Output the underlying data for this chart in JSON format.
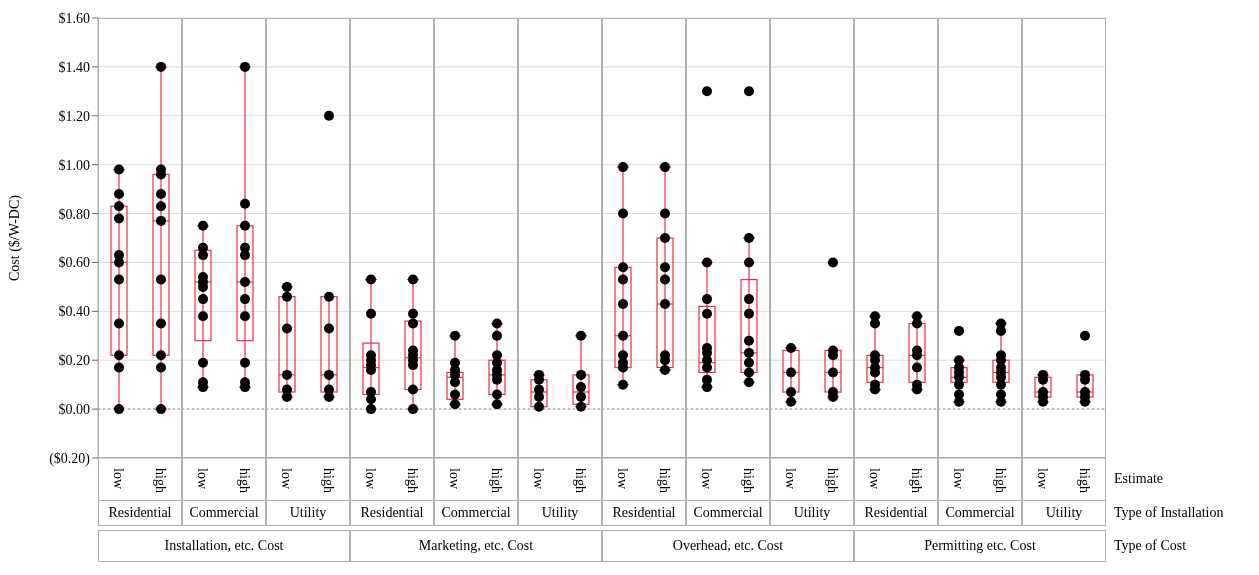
{
  "chart_data": [
    {
      "type": "box",
      "ylabel": "Cost ($/W-DC)",
      "xlabel": "Residential",
      "categories": [
        "low",
        "high"
      ],
      "color": "#e5304a",
      "grid": "y",
      "marker": "circle",
      "ylim": [
        -0.2,
        1.6
      ],
      "yticks": [
        {
          "value": -0.2,
          "label": "($0.20)"
        },
        {
          "value": 0,
          "label": "$0.00"
        },
        {
          "value": 0.2,
          "label": "$0.20"
        },
        {
          "value": 0.4,
          "label": "$0.40"
        },
        {
          "value": 0.6,
          "label": "$0.60"
        },
        {
          "value": 0.8,
          "label": "$0.80"
        },
        {
          "value": 1,
          "label": "$1.00"
        },
        {
          "value": 1.2,
          "label": "$1.20"
        },
        {
          "value": 1.4,
          "label": "$1.40"
        },
        {
          "value": 1.6,
          "label": "$1.60"
        }
      ],
      "ref_lines": [
        {
          "axis": "y",
          "value": 0,
          "color": "#c0c0c0",
          "line_style": "dotted"
        }
      ],
      "boxes": [
        {
          "low": 0,
          "q1": 0.22,
          "median": 0.6,
          "q3": 0.83,
          "high": 0.98
        },
        {
          "low": 0,
          "q1": 0.22,
          "median": 0.77,
          "q3": 0.96,
          "high": 1.4
        }
      ],
      "series": [
        {
          "type": "scatter",
          "color": "#000000",
          "x": [
            "low",
            "low",
            "low",
            "low",
            "low",
            "low",
            "low",
            "low",
            "low",
            "low",
            "low",
            "high",
            "high",
            "high",
            "high",
            "high",
            "high",
            "high",
            "high",
            "high",
            "high",
            "high"
          ],
          "values": [
            0.98,
            0.88,
            0.83,
            0.78,
            0.63,
            0.6,
            0.53,
            0.35,
            0.22,
            0.17,
            0,
            1.4,
            0.98,
            0.96,
            0.88,
            0.83,
            0.77,
            0.53,
            0.35,
            0.22,
            0.17,
            0
          ]
        }
      ]
    },
    {
      "type": "box",
      "xlabel": "Commercial",
      "categories": [
        "low",
        "high"
      ],
      "color": "#e5304a",
      "grid": "y",
      "marker": "circle",
      "tick_labels": "x",
      "annotations": [
        "Installation, etc. Cost"
      ],
      "ylim": [
        -0.2,
        1.6
      ],
      "yticks": [
        -0.2,
        0,
        0.2,
        0.4,
        0.6,
        0.8,
        1,
        1.2,
        1.4,
        1.6
      ],
      "ref_lines": [
        {
          "axis": "y",
          "value": 0,
          "color": "#c0c0c0",
          "line_style": "dotted"
        }
      ],
      "boxes": [
        {
          "low": 0.09,
          "q1": 0.28,
          "median": 0.52,
          "q3": 0.65,
          "high": 0.75
        },
        {
          "low": 0.09,
          "q1": 0.28,
          "median": 0.52,
          "q3": 0.75,
          "high": 1.4
        }
      ],
      "series": [
        {
          "type": "scatter",
          "color": "#000000",
          "x": [
            "low",
            "low",
            "low",
            "low",
            "low",
            "low",
            "low",
            "low",
            "low",
            "low",
            "low",
            "high",
            "high",
            "high",
            "high",
            "high",
            "high",
            "high",
            "high",
            "high",
            "high",
            "high"
          ],
          "values": [
            0.75,
            0.66,
            0.63,
            0.54,
            0.52,
            0.5,
            0.45,
            0.38,
            0.19,
            0.11,
            0.09,
            1.4,
            0.84,
            0.75,
            0.66,
            0.63,
            0.52,
            0.45,
            0.38,
            0.19,
            0.11,
            0.09
          ]
        }
      ]
    },
    {
      "type": "box",
      "xlabel": "Utility",
      "categories": [
        "low",
        "high"
      ],
      "color": "#e5304a",
      "grid": "y",
      "marker": "circle",
      "tick_labels": "x",
      "ylim": [
        -0.2,
        1.6
      ],
      "yticks": [
        -0.2,
        0,
        0.2,
        0.4,
        0.6,
        0.8,
        1,
        1.2,
        1.4,
        1.6
      ],
      "ref_lines": [
        {
          "axis": "y",
          "value": 0,
          "color": "#c0c0c0",
          "line_style": "dotted"
        }
      ],
      "boxes": [
        {
          "low": 0.05,
          "q1": 0.07,
          "median": 0.14,
          "q3": 0.46,
          "high": 0.5
        },
        {
          "low": 0.05,
          "q1": 0.07,
          "median": 0.14,
          "q3": 0.46,
          "high": 0.46
        }
      ],
      "series": [
        {
          "type": "scatter",
          "color": "#000000",
          "x": [
            "low",
            "low",
            "low",
            "low",
            "low",
            "low",
            "high",
            "high",
            "high",
            "high",
            "high",
            "high"
          ],
          "values": [
            0.5,
            0.46,
            0.33,
            0.14,
            0.08,
            0.05,
            1.2,
            0.46,
            0.33,
            0.14,
            0.08,
            0.05
          ]
        }
      ]
    },
    {
      "type": "box",
      "xlabel": "Residential",
      "categories": [
        "low",
        "high"
      ],
      "color": "#e5304a",
      "grid": "y",
      "marker": "circle",
      "tick_labels": "x",
      "ylim": [
        -0.2,
        1.6
      ],
      "yticks": [
        -0.2,
        0,
        0.2,
        0.4,
        0.6,
        0.8,
        1,
        1.2,
        1.4,
        1.6
      ],
      "ref_lines": [
        {
          "axis": "y",
          "value": 0,
          "color": "#c0c0c0",
          "line_style": "dotted"
        }
      ],
      "boxes": [
        {
          "low": 0,
          "q1": 0.06,
          "median": 0.17,
          "q3": 0.27,
          "high": 0.53
        },
        {
          "low": 0,
          "q1": 0.08,
          "median": 0.21,
          "q3": 0.36,
          "high": 0.53
        }
      ],
      "series": [
        {
          "type": "scatter",
          "color": "#000000",
          "x": [
            "low",
            "low",
            "low",
            "low",
            "low",
            "low",
            "low",
            "low",
            "low",
            "high",
            "high",
            "high",
            "high",
            "high",
            "high",
            "high",
            "high",
            "high"
          ],
          "values": [
            0.53,
            0.39,
            0.22,
            0.2,
            0.18,
            0.16,
            0.07,
            0.04,
            0,
            0.53,
            0.39,
            0.35,
            0.24,
            0.22,
            0.2,
            0.18,
            0.08,
            0
          ]
        }
      ]
    },
    {
      "type": "box",
      "xlabel": "Commercial",
      "categories": [
        "low",
        "high"
      ],
      "color": "#e5304a",
      "grid": "y",
      "marker": "circle",
      "tick_labels": "x",
      "annotations": [
        "Marketing, etc. Cost"
      ],
      "ylim": [
        -0.2,
        1.6
      ],
      "yticks": [
        -0.2,
        0,
        0.2,
        0.4,
        0.6,
        0.8,
        1,
        1.2,
        1.4,
        1.6
      ],
      "ref_lines": [
        {
          "axis": "y",
          "value": 0,
          "color": "#c0c0c0",
          "line_style": "dotted"
        }
      ],
      "boxes": [
        {
          "low": 0.02,
          "q1": 0.04,
          "median": 0.13,
          "q3": 0.15,
          "high": 0.3
        },
        {
          "low": 0.02,
          "q1": 0.06,
          "median": 0.14,
          "q3": 0.2,
          "high": 0.35
        }
      ],
      "series": [
        {
          "type": "scatter",
          "color": "#000000",
          "x": [
            "low",
            "low",
            "low",
            "low",
            "low",
            "low",
            "low",
            "high",
            "high",
            "high",
            "high",
            "high",
            "high",
            "high",
            "high",
            "high"
          ],
          "values": [
            0.3,
            0.19,
            0.16,
            0.14,
            0.11,
            0.06,
            0.02,
            0.35,
            0.3,
            0.22,
            0.19,
            0.16,
            0.14,
            0.12,
            0.06,
            0.02
          ]
        }
      ]
    },
    {
      "type": "box",
      "xlabel": "Utility",
      "categories": [
        "low",
        "high"
      ],
      "color": "#e5304a",
      "grid": "y",
      "marker": "circle",
      "tick_labels": "x",
      "ylim": [
        -0.2,
        1.6
      ],
      "yticks": [
        -0.2,
        0,
        0.2,
        0.4,
        0.6,
        0.8,
        1,
        1.2,
        1.4,
        1.6
      ],
      "ref_lines": [
        {
          "axis": "y",
          "value": 0,
          "color": "#c0c0c0",
          "line_style": "dotted"
        }
      ],
      "boxes": [
        {
          "low": 0.01,
          "q1": 0.01,
          "median": 0.07,
          "q3": 0.12,
          "high": 0.14
        },
        {
          "low": 0.01,
          "q1": 0.02,
          "median": 0.07,
          "q3": 0.14,
          "high": 0.3
        }
      ],
      "series": [
        {
          "type": "scatter",
          "color": "#000000",
          "x": [
            "low",
            "low",
            "low",
            "low",
            "low",
            "high",
            "high",
            "high",
            "high",
            "high"
          ],
          "values": [
            0.14,
            0.12,
            0.08,
            0.05,
            0.01,
            0.3,
            0.14,
            0.09,
            0.05,
            0.01
          ]
        }
      ]
    },
    {
      "type": "box",
      "xlabel": "Residential",
      "categories": [
        "low",
        "high"
      ],
      "color": "#e5304a",
      "grid": "y",
      "marker": "circle",
      "tick_labels": "x",
      "ylim": [
        -0.2,
        1.6
      ],
      "yticks": [
        -0.2,
        0,
        0.2,
        0.4,
        0.6,
        0.8,
        1,
        1.2,
        1.4,
        1.6
      ],
      "ref_lines": [
        {
          "axis": "y",
          "value": 0,
          "color": "#c0c0c0",
          "line_style": "dotted"
        }
      ],
      "boxes": [
        {
          "low": 0.1,
          "q1": 0.17,
          "median": 0.3,
          "q3": 0.58,
          "high": 0.99
        },
        {
          "low": 0.16,
          "q1": 0.17,
          "median": 0.43,
          "q3": 0.7,
          "high": 0.99
        }
      ],
      "series": [
        {
          "type": "scatter",
          "color": "#000000",
          "x": [
            "low",
            "low",
            "low",
            "low",
            "low",
            "low",
            "low",
            "low",
            "low",
            "low",
            "high",
            "high",
            "high",
            "high",
            "high",
            "high",
            "high",
            "high",
            "high"
          ],
          "values": [
            0.99,
            0.8,
            0.58,
            0.53,
            0.43,
            0.3,
            0.22,
            0.19,
            0.17,
            0.1,
            0.99,
            0.8,
            0.7,
            0.58,
            0.53,
            0.43,
            0.22,
            0.2,
            0.16
          ]
        }
      ]
    },
    {
      "type": "box",
      "xlabel": "Commercial",
      "categories": [
        "low",
        "high"
      ],
      "color": "#e5304a",
      "grid": "y",
      "marker": "circle",
      "tick_labels": "x",
      "annotations": [
        "Overhead, etc. Cost"
      ],
      "ylim": [
        -0.2,
        1.6
      ],
      "yticks": [
        -0.2,
        0,
        0.2,
        0.4,
        0.6,
        0.8,
        1,
        1.2,
        1.4,
        1.6
      ],
      "ref_lines": [
        {
          "axis": "y",
          "value": 0,
          "color": "#c0c0c0",
          "line_style": "dotted"
        }
      ],
      "boxes": [
        {
          "low": 0.09,
          "q1": 0.15,
          "median": 0.19,
          "q3": 0.42,
          "high": 0.6
        },
        {
          "low": 0.11,
          "q1": 0.15,
          "median": 0.23,
          "q3": 0.53,
          "high": 0.7
        }
      ],
      "series": [
        {
          "type": "scatter",
          "color": "#000000",
          "x": [
            "low",
            "low",
            "low",
            "low",
            "low",
            "low",
            "low",
            "low",
            "low",
            "low",
            "high",
            "high",
            "high",
            "high",
            "high",
            "high",
            "high",
            "high",
            "high",
            "high"
          ],
          "values": [
            1.3,
            0.6,
            0.45,
            0.39,
            0.25,
            0.23,
            0.2,
            0.17,
            0.12,
            0.09,
            1.3,
            0.7,
            0.6,
            0.45,
            0.39,
            0.28,
            0.23,
            0.19,
            0.15,
            0.11
          ]
        }
      ]
    },
    {
      "type": "box",
      "xlabel": "Utility",
      "categories": [
        "low",
        "high"
      ],
      "color": "#e5304a",
      "grid": "y",
      "marker": "circle",
      "tick_labels": "x",
      "ylim": [
        -0.2,
        1.6
      ],
      "yticks": [
        -0.2,
        0,
        0.2,
        0.4,
        0.6,
        0.8,
        1,
        1.2,
        1.4,
        1.6
      ],
      "ref_lines": [
        {
          "axis": "y",
          "value": 0,
          "color": "#c0c0c0",
          "line_style": "dotted"
        }
      ],
      "boxes": [
        {
          "low": 0.03,
          "q1": 0.07,
          "median": 0.15,
          "q3": 0.24,
          "high": 0.25
        },
        {
          "low": 0.05,
          "q1": 0.07,
          "median": 0.15,
          "q3": 0.24,
          "high": 0.24
        }
      ],
      "series": [
        {
          "type": "scatter",
          "color": "#000000",
          "x": [
            "low",
            "low",
            "low",
            "low",
            "high",
            "high",
            "high",
            "high",
            "high",
            "high"
          ],
          "values": [
            0.25,
            0.15,
            0.07,
            0.03,
            0.6,
            0.24,
            0.22,
            0.15,
            0.07,
            0.05
          ]
        }
      ]
    },
    {
      "type": "box",
      "xlabel": "Residential",
      "categories": [
        "low",
        "high"
      ],
      "color": "#e5304a",
      "grid": "y",
      "marker": "circle",
      "tick_labels": "x",
      "ylim": [
        -0.2,
        1.6
      ],
      "yticks": [
        -0.2,
        0,
        0.2,
        0.4,
        0.6,
        0.8,
        1,
        1.2,
        1.4,
        1.6
      ],
      "ref_lines": [
        {
          "axis": "y",
          "value": 0,
          "color": "#c0c0c0",
          "line_style": "dotted"
        }
      ],
      "boxes": [
        {
          "low": 0.08,
          "q1": 0.11,
          "median": 0.17,
          "q3": 0.22,
          "high": 0.38
        },
        {
          "low": 0.08,
          "q1": 0.11,
          "median": 0.22,
          "q3": 0.35,
          "high": 0.38
        }
      ],
      "series": [
        {
          "type": "scatter",
          "color": "#000000",
          "x": [
            "low",
            "low",
            "low",
            "low",
            "low",
            "low",
            "low",
            "low",
            "high",
            "high",
            "high",
            "high",
            "high",
            "high",
            "high"
          ],
          "values": [
            0.38,
            0.35,
            0.22,
            0.2,
            0.17,
            0.15,
            0.1,
            0.08,
            0.38,
            0.35,
            0.24,
            0.22,
            0.17,
            0.1,
            0.08
          ]
        }
      ]
    },
    {
      "type": "box",
      "xlabel": "Commercial",
      "categories": [
        "low",
        "high"
      ],
      "color": "#e5304a",
      "grid": "y",
      "marker": "circle",
      "tick_labels": "x",
      "annotations": [
        "Permitting etc. Cost"
      ],
      "ylim": [
        -0.2,
        1.6
      ],
      "yticks": [
        -0.2,
        0,
        0.2,
        0.4,
        0.6,
        0.8,
        1,
        1.2,
        1.4,
        1.6
      ],
      "ref_lines": [
        {
          "axis": "y",
          "value": 0,
          "color": "#c0c0c0",
          "line_style": "dotted"
        }
      ],
      "boxes": [
        {
          "low": 0.03,
          "q1": 0.11,
          "median": 0.13,
          "q3": 0.17,
          "high": 0.2
        },
        {
          "low": 0.03,
          "q1": 0.11,
          "median": 0.15,
          "q3": 0.2,
          "high": 0.35
        }
      ],
      "series": [
        {
          "type": "scatter",
          "color": "#000000",
          "x": [
            "low",
            "low",
            "low",
            "low",
            "low",
            "low",
            "low",
            "low",
            "high",
            "high",
            "high",
            "high",
            "high",
            "high",
            "high",
            "high",
            "high",
            "high"
          ],
          "values": [
            0.32,
            0.2,
            0.17,
            0.15,
            0.13,
            0.1,
            0.06,
            0.03,
            0.35,
            0.32,
            0.22,
            0.2,
            0.17,
            0.15,
            0.13,
            0.1,
            0.06,
            0.03
          ]
        }
      ]
    },
    {
      "type": "box",
      "xlabel": "Utility",
      "categories": [
        "low",
        "high"
      ],
      "color": "#e5304a",
      "grid": "y",
      "marker": "circle",
      "tick_labels": "x",
      "annotations": [
        "Estimate",
        "Type of Installation",
        "Type of Cost"
      ],
      "ylim": [
        -0.2,
        1.6
      ],
      "yticks": [
        -0.2,
        0,
        0.2,
        0.4,
        0.6,
        0.8,
        1,
        1.2,
        1.4,
        1.6
      ],
      "ref_lines": [
        {
          "axis": "y",
          "value": 0,
          "color": "#c0c0c0",
          "line_style": "dotted"
        }
      ],
      "boxes": [
        {
          "low": 0.03,
          "q1": 0.05,
          "median": 0.07,
          "q3": 0.13,
          "high": 0.14
        },
        {
          "low": 0.03,
          "q1": 0.05,
          "median": 0.07,
          "q3": 0.14,
          "high": 0.14
        }
      ],
      "series": [
        {
          "type": "scatter",
          "color": "#000000",
          "x": [
            "low",
            "low",
            "low",
            "low",
            "low",
            "high",
            "high",
            "high",
            "high",
            "high",
            "high"
          ],
          "values": [
            0.14,
            0.12,
            0.07,
            0.05,
            0.03,
            0.3,
            0.14,
            0.12,
            0.07,
            0.05,
            0.03
          ]
        }
      ]
    }
  ]
}
